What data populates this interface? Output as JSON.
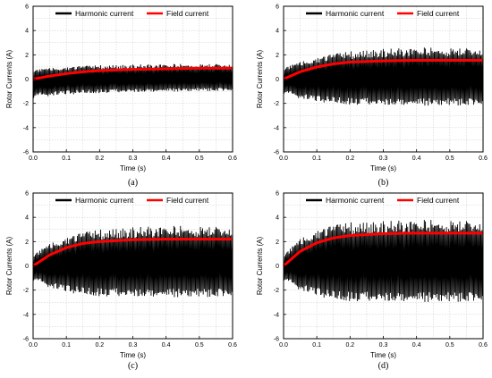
{
  "chart_data": [
    {
      "type": "line",
      "caption": "(a)",
      "xlabel": "Time (s)",
      "ylabel": "Rotor Currents (A)",
      "xlim": [
        0.0,
        0.6
      ],
      "ylim": [
        -6,
        6
      ],
      "xticks": [
        "0.0",
        "0.1",
        "0.2",
        "0.3",
        "0.4",
        "0.5",
        "0.6"
      ],
      "yticks": [
        "6",
        "4",
        "2",
        "0",
        "-2",
        "-4",
        "-6"
      ],
      "grid": true,
      "legend": "top",
      "series": [
        {
          "name": "Harmonic current",
          "color": "#000000",
          "x": [
            0,
            0.05,
            0.1,
            0.15,
            0.2,
            0.3,
            0.4,
            0.5,
            0.6
          ],
          "upper": [
            0.8,
            0.9,
            1.0,
            1.1,
            1.15,
            1.2,
            1.25,
            1.25,
            1.3
          ],
          "lower": [
            -1.6,
            -1.4,
            -1.3,
            -1.2,
            -1.15,
            -1.1,
            -1.05,
            -1.0,
            -1.0
          ]
        },
        {
          "name": "Field current",
          "color": "#ff0000",
          "x": [
            0,
            0.05,
            0.1,
            0.15,
            0.2,
            0.3,
            0.4,
            0.5,
            0.6
          ],
          "values": [
            0,
            0.25,
            0.45,
            0.6,
            0.7,
            0.8,
            0.85,
            0.9,
            0.9
          ]
        }
      ]
    },
    {
      "type": "line",
      "caption": "(b)",
      "xlabel": "Time (s)",
      "ylabel": "Rotor Currents (A)",
      "xlim": [
        0.0,
        0.6
      ],
      "ylim": [
        -6,
        6
      ],
      "xticks": [
        "0.0",
        "0.1",
        "0.2",
        "0.3",
        "0.4",
        "0.5",
        "0.6"
      ],
      "yticks": [
        "6",
        "4",
        "2",
        "0",
        "-2",
        "-4",
        "-6"
      ],
      "grid": true,
      "legend": "top",
      "series": [
        {
          "name": "Harmonic current",
          "color": "#000000",
          "x": [
            0,
            0.05,
            0.1,
            0.15,
            0.2,
            0.3,
            0.4,
            0.5,
            0.6
          ],
          "upper": [
            1.0,
            1.4,
            1.8,
            2.1,
            2.3,
            2.5,
            2.6,
            2.6,
            2.6
          ],
          "lower": [
            -1.2,
            -1.6,
            -1.9,
            -2.0,
            -2.1,
            -2.2,
            -2.2,
            -2.2,
            -2.2
          ]
        },
        {
          "name": "Field current",
          "color": "#ff0000",
          "x": [
            0,
            0.05,
            0.1,
            0.15,
            0.2,
            0.3,
            0.4,
            0.5,
            0.6
          ],
          "values": [
            0,
            0.6,
            1.0,
            1.25,
            1.4,
            1.5,
            1.55,
            1.55,
            1.55
          ]
        }
      ]
    },
    {
      "type": "line",
      "caption": "(c)",
      "xlabel": "Time (s)",
      "ylabel": "Rotor Currents (A)",
      "xlim": [
        0.0,
        0.6
      ],
      "ylim": [
        -6,
        6
      ],
      "xticks": [
        "0.0",
        "0.1",
        "0.2",
        "0.3",
        "0.4",
        "0.5",
        "0.6"
      ],
      "yticks": [
        "6",
        "4",
        "2",
        "0",
        "-2",
        "-4",
        "-6"
      ],
      "grid": true,
      "legend": "top",
      "series": [
        {
          "name": "Harmonic current",
          "color": "#000000",
          "x": [
            0,
            0.05,
            0.1,
            0.15,
            0.2,
            0.3,
            0.4,
            0.5,
            0.6
          ],
          "upper": [
            1.0,
            1.8,
            2.4,
            2.8,
            3.0,
            3.2,
            3.3,
            3.3,
            3.3
          ],
          "lower": [
            -1.2,
            -1.8,
            -2.2,
            -2.4,
            -2.5,
            -2.6,
            -2.6,
            -2.6,
            -2.6
          ]
        },
        {
          "name": "Field current",
          "color": "#ff0000",
          "x": [
            0,
            0.05,
            0.1,
            0.15,
            0.2,
            0.3,
            0.4,
            0.5,
            0.6
          ],
          "values": [
            0,
            0.9,
            1.5,
            1.85,
            2.0,
            2.15,
            2.2,
            2.2,
            2.2
          ]
        }
      ]
    },
    {
      "type": "line",
      "caption": "(d)",
      "xlabel": "Time (s)",
      "ylabel": "Rotor Currents (A)",
      "xlim": [
        0.0,
        0.6
      ],
      "ylim": [
        -6,
        6
      ],
      "xticks": [
        "0.0",
        "0.1",
        "0.2",
        "0.3",
        "0.4",
        "0.5",
        "0.6"
      ],
      "yticks": [
        "6",
        "4",
        "2",
        "0",
        "-2",
        "-4",
        "-6"
      ],
      "grid": true,
      "legend": "top",
      "series": [
        {
          "name": "Harmonic current",
          "color": "#000000",
          "x": [
            0,
            0.05,
            0.1,
            0.15,
            0.2,
            0.3,
            0.4,
            0.5,
            0.6
          ],
          "upper": [
            1.0,
            2.2,
            3.0,
            3.4,
            3.6,
            3.7,
            3.8,
            3.8,
            3.8
          ],
          "lower": [
            -1.2,
            -2.0,
            -2.5,
            -2.8,
            -2.9,
            -3.0,
            -3.0,
            -3.0,
            -3.0
          ]
        },
        {
          "name": "Field current",
          "color": "#ff0000",
          "x": [
            0,
            0.05,
            0.1,
            0.15,
            0.2,
            0.3,
            0.4,
            0.5,
            0.6
          ],
          "values": [
            0,
            1.2,
            1.9,
            2.3,
            2.5,
            2.65,
            2.7,
            2.7,
            2.7
          ]
        }
      ]
    }
  ]
}
